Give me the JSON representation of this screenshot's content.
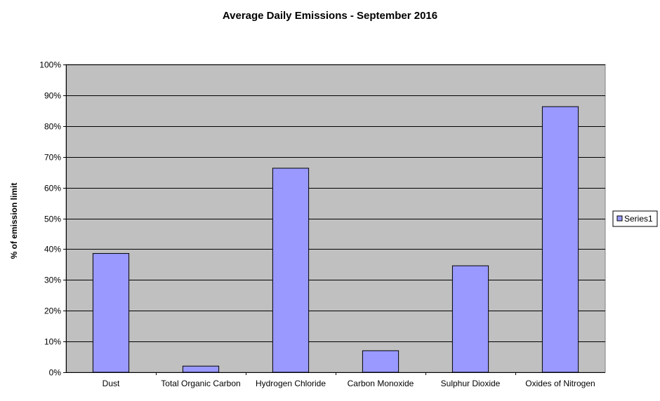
{
  "chart_data": {
    "type": "bar",
    "title": "Average Daily Emissions - September 2016",
    "xlabel": "",
    "ylabel": "% of emission limit",
    "categories": [
      "Dust",
      "Total Organic Carbon",
      "Hydrogen Chloride",
      "Carbon Monoxide",
      "Sulphur Dioxide",
      "Oxides of Nitrogen"
    ],
    "series": [
      {
        "name": "Series1",
        "values": [
          38.6,
          2.0,
          66.3,
          7.0,
          34.6,
          86.3
        ]
      }
    ],
    "ylim": [
      0,
      100
    ],
    "yticks": [
      "0%",
      "10%",
      "20%",
      "30%",
      "40%",
      "50%",
      "60%",
      "70%",
      "80%",
      "90%",
      "100%"
    ],
    "grid": true,
    "legend_position": "right",
    "colors": {
      "plot_background": "#c0c0c0",
      "bar_fill": "#9999ff",
      "bar_stroke": "#000000",
      "gridline": "#000000"
    }
  }
}
